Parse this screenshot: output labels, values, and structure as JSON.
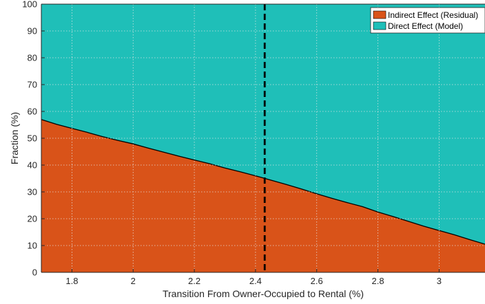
{
  "chart_data": {
    "type": "area",
    "stacked": true,
    "title": "",
    "xlabel": "Transition From Owner-Occupied to Rental (%)",
    "ylabel": "Fraction (%)",
    "xlim": [
      1.7,
      3.15
    ],
    "ylim": [
      0,
      100
    ],
    "xticks": [
      1.8,
      2,
      2.2,
      2.4,
      2.6,
      2.8,
      3
    ],
    "xtick_labels": [
      "1.8",
      "2",
      "2.2",
      "2.4",
      "2.6",
      "2.8",
      "3"
    ],
    "yticks": [
      0,
      10,
      20,
      30,
      40,
      50,
      60,
      70,
      80,
      90,
      100
    ],
    "ytick_labels": [
      "0",
      "10",
      "20",
      "30",
      "40",
      "50",
      "60",
      "70",
      "80",
      "90",
      "100"
    ],
    "grid": true,
    "legend_position": "top-right",
    "vline": {
      "x": 2.43,
      "style": "dashed",
      "color": "#000000"
    },
    "x": [
      1.7,
      1.75,
      1.8,
      1.85,
      1.9,
      1.95,
      2.0,
      2.05,
      2.1,
      2.15,
      2.2,
      2.25,
      2.3,
      2.35,
      2.4,
      2.45,
      2.5,
      2.55,
      2.6,
      2.65,
      2.7,
      2.75,
      2.8,
      2.85,
      2.9,
      2.95,
      3.0,
      3.05,
      3.1,
      3.15
    ],
    "series": [
      {
        "name": "Indirect Effect (Residual)",
        "color": "#d95319",
        "values": [
          57.0,
          55.2,
          53.7,
          52.2,
          50.6,
          49.2,
          47.9,
          46.3,
          44.8,
          43.3,
          41.9,
          40.5,
          38.9,
          37.5,
          36.0,
          34.4,
          32.8,
          31.1,
          29.3,
          27.6,
          26.0,
          24.5,
          22.5,
          20.8,
          19.0,
          17.2,
          15.6,
          14.0,
          12.2,
          10.5
        ]
      },
      {
        "name": "Direct Effect (Model)",
        "color": "#1fbfb8",
        "values": [
          43.0,
          44.8,
          46.3,
          47.8,
          49.4,
          50.8,
          52.1,
          53.7,
          55.2,
          56.7,
          58.1,
          59.5,
          61.1,
          62.5,
          64.0,
          65.6,
          67.2,
          68.9,
          70.7,
          72.4,
          74.0,
          75.5,
          77.5,
          79.2,
          81.0,
          82.8,
          84.4,
          86.0,
          87.8,
          89.5
        ]
      }
    ]
  }
}
